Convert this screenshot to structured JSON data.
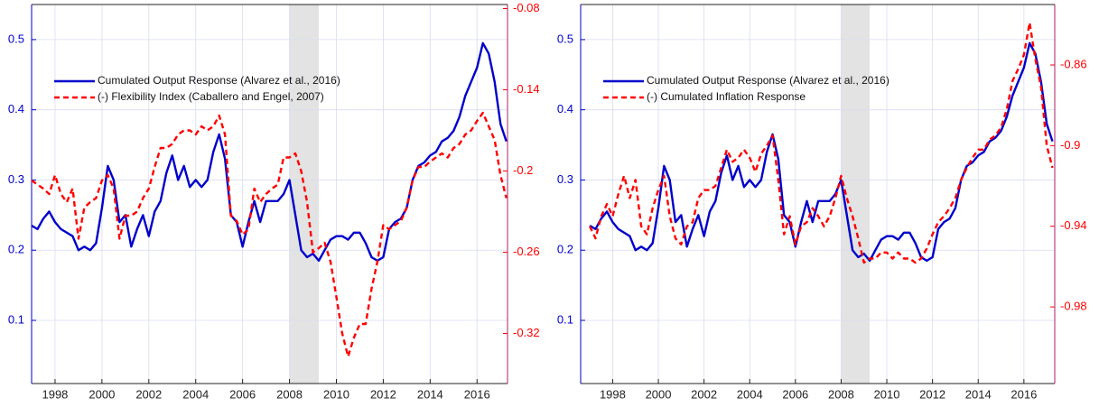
{
  "chart_data": [
    {
      "type": "line",
      "x": [
        1997,
        1997.25,
        1997.5,
        1997.75,
        1998,
        1998.25,
        1998.5,
        1998.75,
        1999,
        1999.25,
        1999.5,
        1999.75,
        2000,
        2000.25,
        2000.5,
        2000.75,
        2001,
        2001.25,
        2001.5,
        2001.75,
        2002,
        2002.25,
        2002.5,
        2002.75,
        2003,
        2003.25,
        2003.5,
        2003.75,
        2004,
        2004.25,
        2004.5,
        2004.75,
        2005,
        2005.25,
        2005.5,
        2005.75,
        2006,
        2006.25,
        2006.5,
        2006.75,
        2007,
        2007.25,
        2007.5,
        2007.75,
        2008,
        2008.25,
        2008.5,
        2008.75,
        2009,
        2009.25,
        2009.5,
        2009.75,
        2010,
        2010.25,
        2010.5,
        2010.75,
        2011,
        2011.25,
        2011.5,
        2011.75,
        2012,
        2012.25,
        2012.5,
        2012.75,
        2013,
        2013.25,
        2013.5,
        2013.75,
        2014,
        2014.25,
        2014.5,
        2014.75,
        2015,
        2015.25,
        2015.5,
        2015.75,
        2016,
        2016.25,
        2016.5,
        2016.75,
        2017,
        2017.25
      ],
      "series": [
        {
          "name": "Cumulated Output Response (Alvarez et al., 2016)",
          "color": "#0000cc",
          "linestyle": "solid",
          "values": [
            0.235,
            0.23,
            0.245,
            0.255,
            0.24,
            0.23,
            0.225,
            0.22,
            0.2,
            0.205,
            0.2,
            0.21,
            0.26,
            0.32,
            0.3,
            0.24,
            0.25,
            0.205,
            0.23,
            0.25,
            0.22,
            0.255,
            0.27,
            0.31,
            0.335,
            0.3,
            0.32,
            0.29,
            0.3,
            0.29,
            0.3,
            0.34,
            0.365,
            0.33,
            0.25,
            0.24,
            0.205,
            0.24,
            0.27,
            0.24,
            0.27,
            0.27,
            0.27,
            0.28,
            0.3,
            0.25,
            0.2,
            0.19,
            0.195,
            0.185,
            0.2,
            0.215,
            0.22,
            0.22,
            0.215,
            0.225,
            0.225,
            0.21,
            0.19,
            0.185,
            0.19,
            0.23,
            0.24,
            0.245,
            0.26,
            0.3,
            0.32,
            0.325,
            0.335,
            0.34,
            0.355,
            0.36,
            0.37,
            0.39,
            0.42,
            0.44,
            0.46,
            0.495,
            0.48,
            0.44,
            0.38,
            0.355
          ]
        },
        {
          "name": "(-) Flexibility Index (Caballero and Engel, 2007)",
          "color": "#ff0000",
          "linestyle": "dashed",
          "axis": "y2",
          "values": [
            -0.207,
            -0.21,
            -0.213,
            -0.217,
            -0.203,
            -0.217,
            -0.223,
            -0.213,
            -0.25,
            -0.227,
            -0.223,
            -0.22,
            -0.207,
            -0.203,
            -0.213,
            -0.25,
            -0.233,
            -0.233,
            -0.23,
            -0.22,
            -0.213,
            -0.197,
            -0.183,
            -0.183,
            -0.18,
            -0.173,
            -0.17,
            -0.17,
            -0.173,
            -0.167,
            -0.17,
            -0.167,
            -0.159,
            -0.173,
            -0.233,
            -0.237,
            -0.247,
            -0.243,
            -0.213,
            -0.223,
            -0.217,
            -0.213,
            -0.21,
            -0.19,
            -0.19,
            -0.187,
            -0.2,
            -0.223,
            -0.26,
            -0.257,
            -0.253,
            -0.267,
            -0.293,
            -0.32,
            -0.337,
            -0.323,
            -0.313,
            -0.313,
            -0.287,
            -0.267,
            -0.24,
            -0.243,
            -0.24,
            -0.237,
            -0.227,
            -0.207,
            -0.197,
            -0.197,
            -0.193,
            -0.19,
            -0.187,
            -0.19,
            -0.183,
            -0.18,
            -0.173,
            -0.17,
            -0.163,
            -0.157,
            -0.167,
            -0.177,
            -0.203,
            -0.22
          ]
        }
      ],
      "xlim": [
        1997,
        2017.3
      ],
      "xticks": [
        1998,
        2000,
        2002,
        2004,
        2006,
        2008,
        2010,
        2012,
        2014,
        2016
      ],
      "ylim": [
        0.01,
        0.55
      ],
      "yticks": [
        0.1,
        0.2,
        0.3,
        0.4,
        0.5
      ],
      "y2lim": [
        -0.357,
        -0.077
      ],
      "y2ticks": [
        -0.32,
        -0.26,
        -0.2,
        -0.14,
        -0.08
      ],
      "shade": [
        2008,
        2009.25
      ],
      "grid": true,
      "legend": "upper left"
    },
    {
      "type": "line",
      "x": [
        1997,
        1997.25,
        1997.5,
        1997.75,
        1998,
        1998.25,
        1998.5,
        1998.75,
        1999,
        1999.25,
        1999.5,
        1999.75,
        2000,
        2000.25,
        2000.5,
        2000.75,
        2001,
        2001.25,
        2001.5,
        2001.75,
        2002,
        2002.25,
        2002.5,
        2002.75,
        2003,
        2003.25,
        2003.5,
        2003.75,
        2004,
        2004.25,
        2004.5,
        2004.75,
        2005,
        2005.25,
        2005.5,
        2005.75,
        2006,
        2006.25,
        2006.5,
        2006.75,
        2007,
        2007.25,
        2007.5,
        2007.75,
        2008,
        2008.25,
        2008.5,
        2008.75,
        2009,
        2009.25,
        2009.5,
        2009.75,
        2010,
        2010.25,
        2010.5,
        2010.75,
        2011,
        2011.25,
        2011.5,
        2011.75,
        2012,
        2012.25,
        2012.5,
        2012.75,
        2013,
        2013.25,
        2013.5,
        2013.75,
        2014,
        2014.25,
        2014.5,
        2014.75,
        2015,
        2015.25,
        2015.5,
        2015.75,
        2016,
        2016.25,
        2016.5,
        2016.75,
        2017,
        2017.25
      ],
      "series": [
        {
          "name": "Cumulated Output Response (Alvarez et al., 2016)",
          "color": "#0000cc",
          "linestyle": "solid",
          "values": [
            0.235,
            0.23,
            0.245,
            0.255,
            0.24,
            0.23,
            0.225,
            0.22,
            0.2,
            0.205,
            0.2,
            0.21,
            0.26,
            0.32,
            0.3,
            0.24,
            0.25,
            0.205,
            0.23,
            0.25,
            0.22,
            0.255,
            0.27,
            0.31,
            0.335,
            0.3,
            0.32,
            0.29,
            0.3,
            0.29,
            0.3,
            0.34,
            0.365,
            0.33,
            0.25,
            0.24,
            0.205,
            0.24,
            0.27,
            0.24,
            0.27,
            0.27,
            0.27,
            0.28,
            0.3,
            0.25,
            0.2,
            0.19,
            0.195,
            0.185,
            0.2,
            0.215,
            0.22,
            0.22,
            0.215,
            0.225,
            0.225,
            0.21,
            0.19,
            0.185,
            0.19,
            0.23,
            0.24,
            0.245,
            0.26,
            0.3,
            0.32,
            0.325,
            0.335,
            0.34,
            0.355,
            0.36,
            0.37,
            0.39,
            0.42,
            0.44,
            0.46,
            0.495,
            0.48,
            0.44,
            0.38,
            0.355
          ]
        },
        {
          "name": "(-) Cumulated Inflation Response",
          "color": "#ff0000",
          "linestyle": "dashed",
          "axis": "y2",
          "values": [
            -0.94,
            -0.946,
            -0.935,
            -0.929,
            -0.935,
            -0.924,
            -0.915,
            -0.926,
            -0.917,
            -0.94,
            -0.944,
            -0.931,
            -0.922,
            -0.915,
            -0.935,
            -0.946,
            -0.949,
            -0.94,
            -0.938,
            -0.926,
            -0.922,
            -0.922,
            -0.92,
            -0.911,
            -0.902,
            -0.908,
            -0.906,
            -0.902,
            -0.906,
            -0.913,
            -0.904,
            -0.9,
            -0.895,
            -0.917,
            -0.944,
            -0.935,
            -0.949,
            -0.94,
            -0.938,
            -0.931,
            -0.935,
            -0.94,
            -0.935,
            -0.926,
            -0.915,
            -0.926,
            -0.935,
            -0.946,
            -0.958,
            -0.956,
            -0.956,
            -0.953,
            -0.953,
            -0.956,
            -0.953,
            -0.956,
            -0.956,
            -0.958,
            -0.956,
            -0.951,
            -0.944,
            -0.938,
            -0.935,
            -0.931,
            -0.926,
            -0.917,
            -0.911,
            -0.906,
            -0.902,
            -0.902,
            -0.897,
            -0.895,
            -0.891,
            -0.882,
            -0.868,
            -0.862,
            -0.855,
            -0.839,
            -0.857,
            -0.871,
            -0.9,
            -0.911
          ]
        }
      ],
      "xlim": [
        1996.6,
        2017.35
      ],
      "xticks": [
        1998,
        2000,
        2002,
        2004,
        2006,
        2008,
        2010,
        2012,
        2014,
        2016
      ],
      "ylim": [
        0.01,
        0.55
      ],
      "yticks": [
        0.1,
        0.2,
        0.3,
        0.4,
        0.5
      ],
      "y2lim": [
        -1.018,
        -0.83
      ],
      "y2ticks": [
        -0.98,
        -0.94,
        -0.9,
        -0.86
      ],
      "shade": [
        2008,
        2009.25
      ],
      "grid": true,
      "legend": "upper left"
    }
  ]
}
